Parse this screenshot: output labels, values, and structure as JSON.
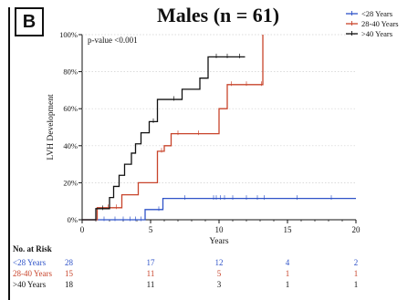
{
  "panel": {
    "label": "B"
  },
  "chart_data": {
    "type": "line",
    "step": true,
    "title": "Males (n = 61)",
    "xlabel": "Years",
    "ylabel": "LVH Development",
    "xlim": [
      0,
      20
    ],
    "ylim": [
      0,
      100
    ],
    "xticks": [
      0,
      5,
      10,
      15,
      20
    ],
    "yticks": [
      0,
      20,
      40,
      60,
      80,
      100
    ],
    "ytick_labels": [
      "0%",
      "20%",
      "40%",
      "60%",
      "80%",
      "100%"
    ],
    "annotation": "p-value <0.001",
    "legend_position": "top-right",
    "series": [
      {
        "name": "<28 Years",
        "color": "#2f53c8",
        "x": [
          0,
          4.6,
          5.9,
          20
        ],
        "y": [
          0,
          5.5,
          11.5,
          11.5
        ],
        "censor_x": [
          1.6,
          2.4,
          3.0,
          3.5,
          3.9,
          4.3,
          5.6,
          7.5,
          9.6,
          9.8,
          10.1,
          10.4,
          11.0,
          12.0,
          12.8,
          13.3,
          15.7,
          18.2
        ],
        "censor_y": [
          0,
          0,
          0,
          0,
          0,
          0,
          5.5,
          11.5,
          11.5,
          11.5,
          11.5,
          11.5,
          11.5,
          11.5,
          11.5,
          11.5,
          11.5,
          11.5
        ]
      },
      {
        "name": "28-40 Years",
        "color": "#c8442b",
        "x": [
          0,
          1.1,
          2.2,
          2.9,
          4.1,
          5.5,
          6.0,
          6.5,
          10.0,
          10.6,
          13.2,
          13.2
        ],
        "y": [
          0,
          6.5,
          6.5,
          13.5,
          20,
          37,
          40,
          46.5,
          60,
          73,
          73,
          100
        ],
        "censor_x": [
          1.9,
          2.5,
          5.8,
          7.0,
          8.5,
          10.9,
          12.0,
          13.1
        ],
        "censor_y": [
          6.5,
          6.5,
          37,
          46.5,
          46.5,
          73,
          73,
          73
        ]
      },
      {
        "name": ">40 Years",
        "color": "#111111",
        "x": [
          0,
          1.0,
          2.0,
          2.3,
          2.7,
          3.1,
          3.6,
          3.9,
          4.3,
          4.9,
          5.5,
          6.3,
          7.3,
          8.2,
          8.6,
          9.2,
          11.9
        ],
        "y": [
          0,
          6,
          12,
          18,
          24,
          30,
          36,
          41,
          47,
          53,
          65,
          65,
          70.5,
          70.5,
          76.5,
          88,
          88
        ],
        "censor_x": [
          1.5,
          5.2,
          6.7,
          9.8,
          10.6,
          11.5
        ],
        "censor_y": [
          6,
          53,
          65,
          88,
          88,
          88
        ]
      }
    ],
    "risk_table": {
      "header": "No. at Risk",
      "times": [
        0,
        5,
        10,
        15,
        20
      ],
      "rows": [
        {
          "label": "<28 Years",
          "color": "#2f53c8",
          "counts": [
            "28",
            "17",
            "12",
            "4",
            "2"
          ]
        },
        {
          "label": "28-40 Years",
          "color": "#c8442b",
          "counts": [
            "15",
            "11",
            "5",
            "1",
            "1"
          ]
        },
        {
          "label": ">40 Years",
          "color": "#111111",
          "counts": [
            "18",
            "11",
            "3",
            "1",
            "1"
          ]
        }
      ]
    }
  }
}
